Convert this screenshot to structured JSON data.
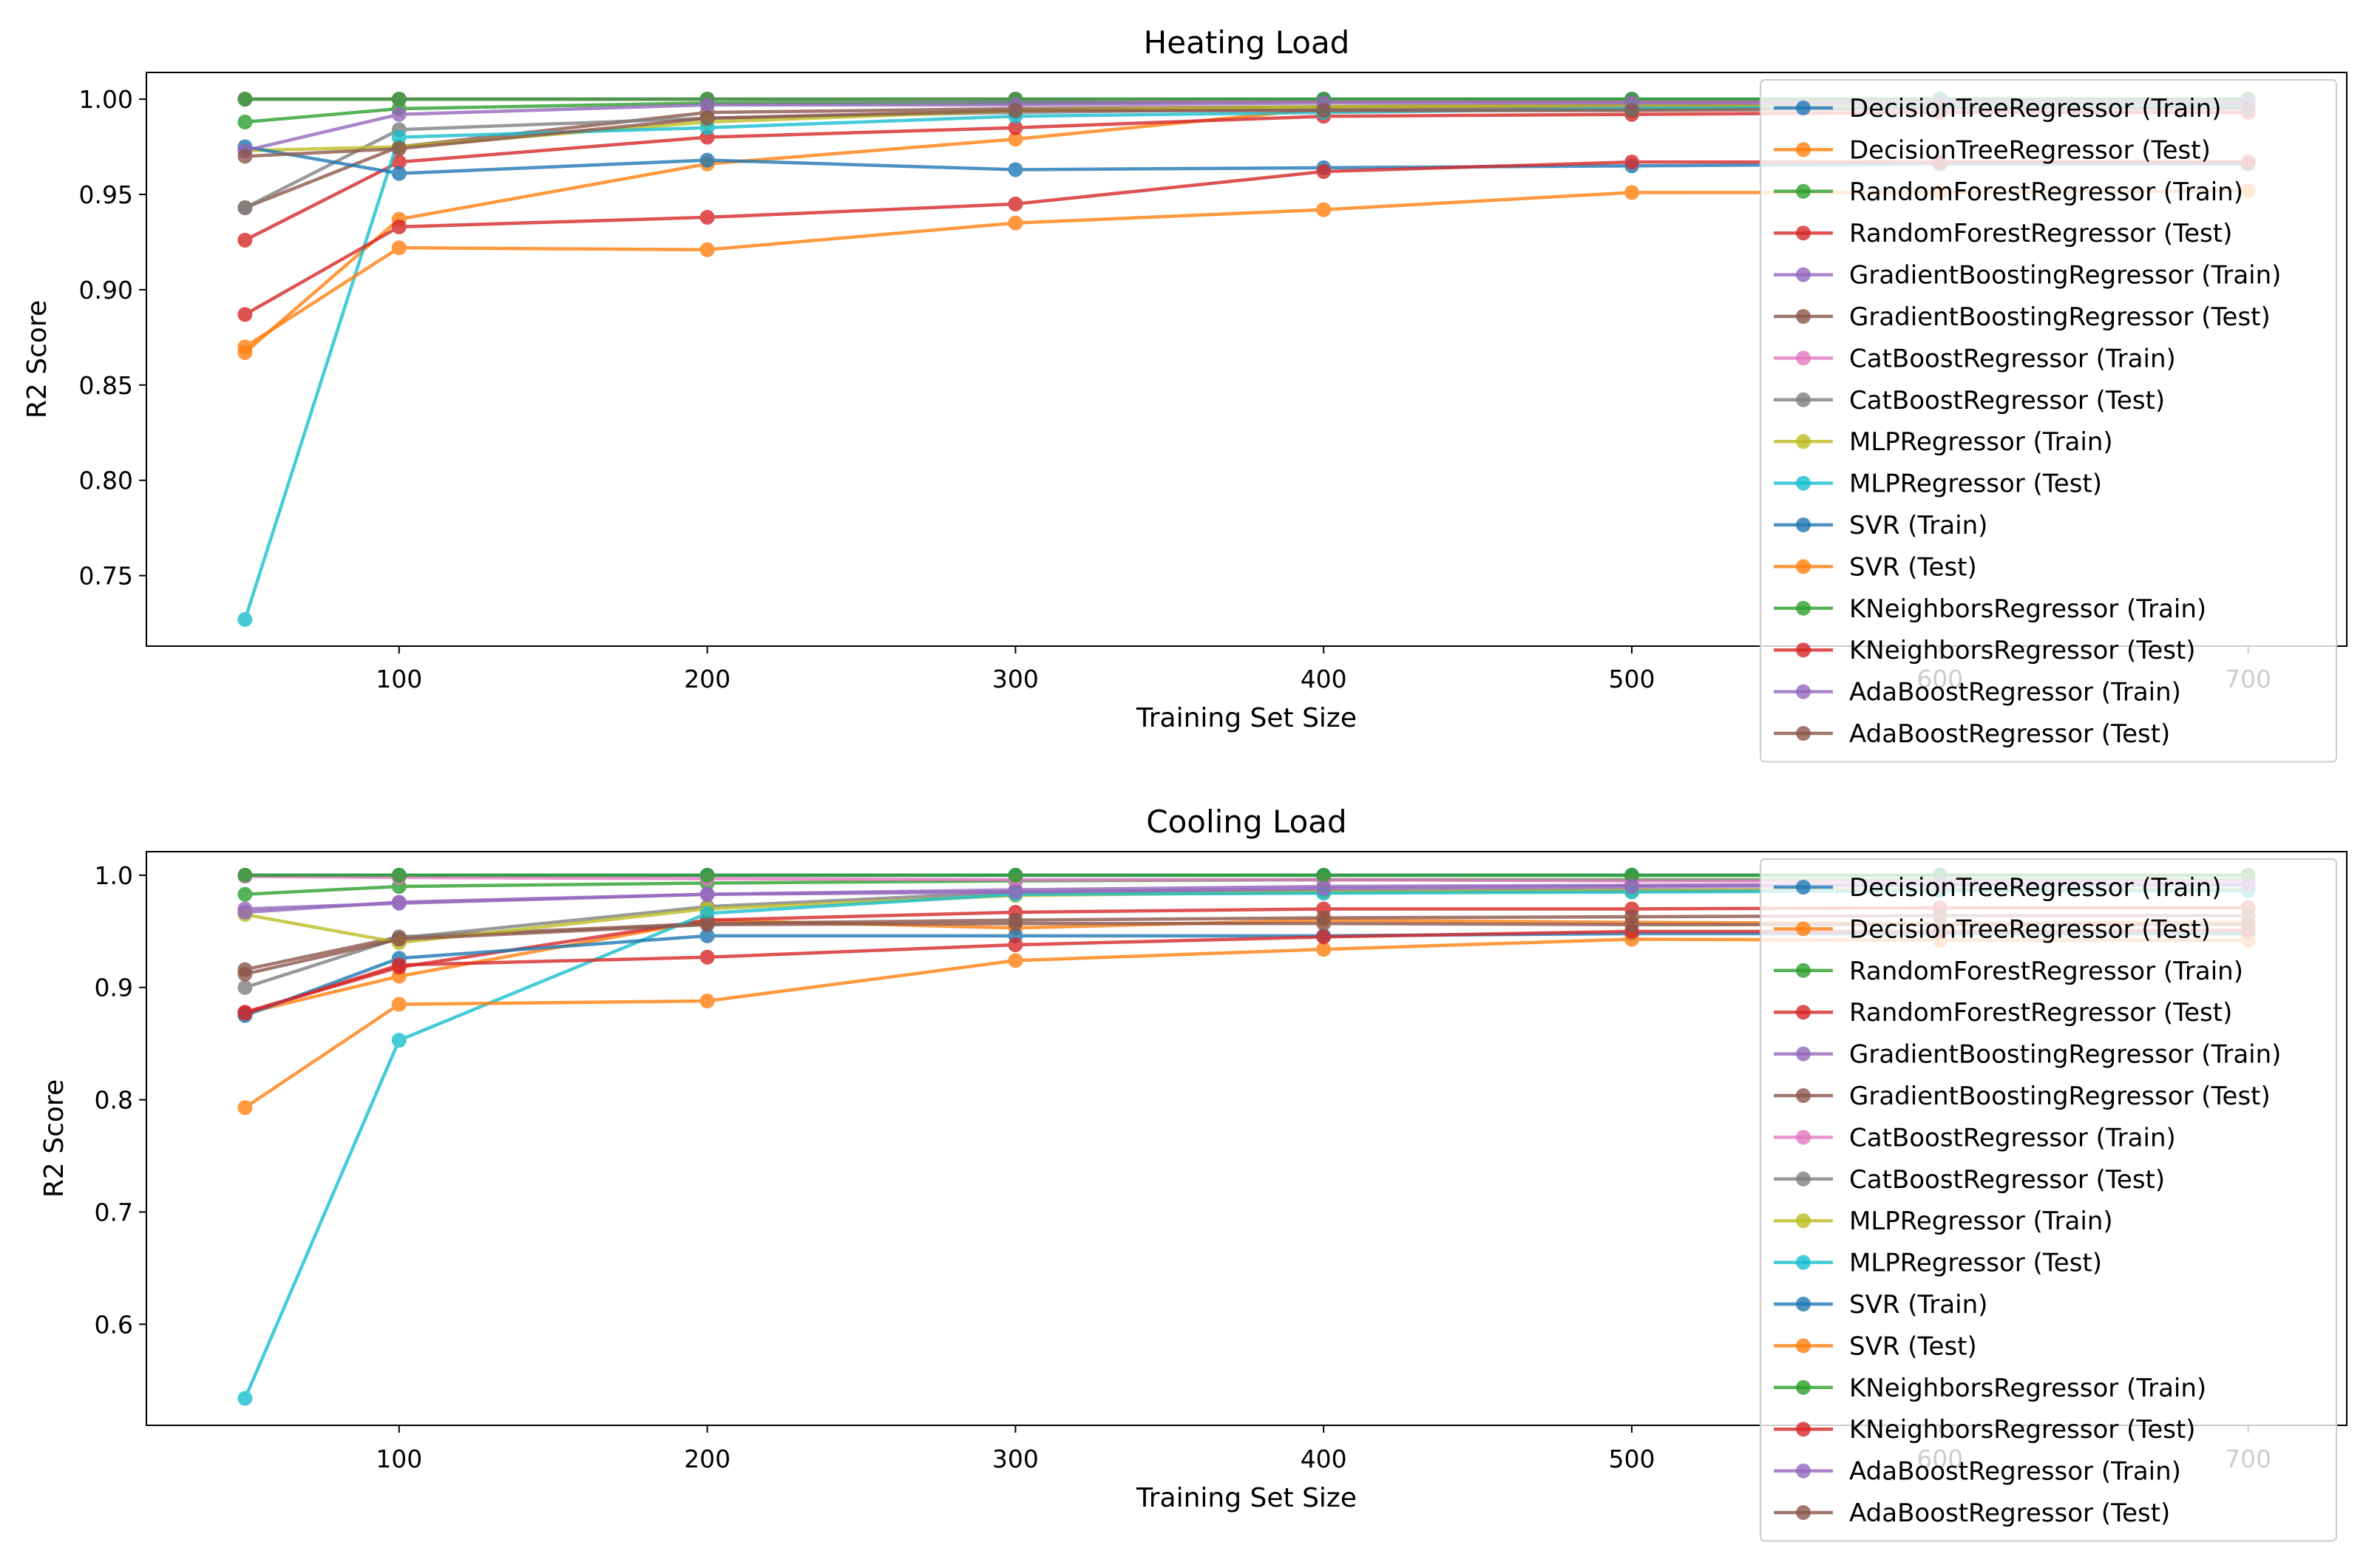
{
  "figure_title": "",
  "chart_data": [
    {
      "type": "line",
      "title": "Heating Load",
      "xlabel": "Training Set Size",
      "ylabel": "R2 Score",
      "xlim": [
        18,
        732
      ],
      "ylim": [
        0.713,
        1.014
      ],
      "xticks": [
        100,
        200,
        300,
        400,
        500,
        600,
        700
      ],
      "xtick_labels": [
        "100",
        "200",
        "300",
        "400",
        "500",
        "600",
        "700"
      ],
      "yticks": [
        0.75,
        0.8,
        0.85,
        0.9,
        0.95,
        1.0
      ],
      "ytick_labels": [
        "0.75",
        "0.80",
        "0.85",
        "0.90",
        "0.95",
        "1.00"
      ],
      "legend_position": "top-right",
      "x": [
        50,
        100,
        200,
        300,
        400,
        500,
        600,
        700
      ],
      "series": [
        {
          "name": "DecisionTreeRegressor (Train)",
          "color": "#1f77b4",
          "values": [
            1.0,
            1.0,
            1.0,
            1.0,
            1.0,
            1.0,
            1.0,
            1.0
          ]
        },
        {
          "name": "DecisionTreeRegressor (Test)",
          "color": "#ff7f0e",
          "values": [
            0.867,
            0.937,
            0.966,
            0.979,
            0.995,
            0.995,
            0.996,
            0.996
          ]
        },
        {
          "name": "RandomForestRegressor (Train)",
          "color": "#2ca02c",
          "values": [
            0.988,
            0.995,
            0.998,
            0.998,
            0.999,
            0.999,
            0.999,
            0.999
          ]
        },
        {
          "name": "RandomForestRegressor (Test)",
          "color": "#d62728",
          "values": [
            0.926,
            0.967,
            0.98,
            0.985,
            0.991,
            0.992,
            0.993,
            0.993
          ]
        },
        {
          "name": "GradientBoostingRegressor (Train)",
          "color": "#9467bd",
          "values": [
            1.0,
            1.0,
            1.0,
            0.999,
            0.999,
            0.999,
            0.999,
            0.999
          ]
        },
        {
          "name": "GradientBoostingRegressor (Test)",
          "color": "#8c564b",
          "values": [
            0.943,
            0.975,
            0.993,
            0.995,
            0.996,
            0.997,
            0.997,
            0.997
          ]
        },
        {
          "name": "CatBoostRegressor (Train)",
          "color": "#e377c2",
          "values": [
            1.0,
            1.0,
            1.0,
            1.0,
            0.999,
            0.999,
            0.999,
            0.999
          ]
        },
        {
          "name": "CatBoostRegressor (Test)",
          "color": "#7f7f7f",
          "values": [
            0.943,
            0.984,
            0.99,
            0.993,
            0.995,
            0.996,
            0.997,
            0.997
          ]
        },
        {
          "name": "MLPRegressor (Train)",
          "color": "#bcbd22",
          "values": [
            0.973,
            0.975,
            0.988,
            0.994,
            0.996,
            0.997,
            0.997,
            0.998
          ]
        },
        {
          "name": "MLPRegressor (Test)",
          "color": "#17becf",
          "values": [
            0.727,
            0.98,
            0.985,
            0.991,
            0.993,
            0.995,
            0.996,
            0.996
          ]
        },
        {
          "name": "SVR (Train)",
          "color": "#1f77b4",
          "values": [
            0.975,
            0.961,
            0.968,
            0.963,
            0.964,
            0.965,
            0.966,
            0.966
          ]
        },
        {
          "name": "SVR (Test)",
          "color": "#ff7f0e",
          "values": [
            0.87,
            0.922,
            0.921,
            0.935,
            0.942,
            0.951,
            0.951,
            0.952
          ]
        },
        {
          "name": "KNeighborsRegressor (Train)",
          "color": "#2ca02c",
          "values": [
            1.0,
            1.0,
            1.0,
            1.0,
            1.0,
            1.0,
            1.0,
            1.0
          ]
        },
        {
          "name": "KNeighborsRegressor (Test)",
          "color": "#d62728",
          "values": [
            0.887,
            0.933,
            0.938,
            0.945,
            0.962,
            0.967,
            0.967,
            0.967
          ]
        },
        {
          "name": "AdaBoostRegressor (Train)",
          "color": "#9467bd",
          "values": [
            0.973,
            0.992,
            0.997,
            0.997,
            0.998,
            0.998,
            0.998,
            0.998
          ]
        },
        {
          "name": "AdaBoostRegressor (Test)",
          "color": "#8c564b",
          "values": [
            0.97,
            0.974,
            0.99,
            0.994,
            0.994,
            0.994,
            0.995,
            0.995
          ]
        }
      ]
    },
    {
      "type": "line",
      "title": "Cooling Load",
      "xlabel": "Training Set Size",
      "ylabel": "R2 Score",
      "xlim": [
        18,
        732
      ],
      "ylim": [
        0.51,
        1.021
      ],
      "xticks": [
        100,
        200,
        300,
        400,
        500,
        600,
        700
      ],
      "xtick_labels": [
        "100",
        "200",
        "300",
        "400",
        "500",
        "600",
        "700"
      ],
      "yticks": [
        0.6,
        0.7,
        0.8,
        0.9,
        1.0
      ],
      "ytick_labels": [
        "0.6",
        "0.7",
        "0.8",
        "0.9",
        "1.0"
      ],
      "legend_position": "top-right",
      "x": [
        50,
        100,
        200,
        300,
        400,
        500,
        600,
        700
      ],
      "series": [
        {
          "name": "DecisionTreeRegressor (Train)",
          "color": "#1f77b4",
          "values": [
            1.0,
            1.0,
            1.0,
            1.0,
            1.0,
            1.0,
            1.0,
            1.0
          ]
        },
        {
          "name": "DecisionTreeRegressor (Test)",
          "color": "#ff7f0e",
          "values": [
            0.877,
            0.91,
            0.96,
            0.953,
            0.96,
            0.958,
            0.957,
            0.958
          ]
        },
        {
          "name": "RandomForestRegressor (Train)",
          "color": "#2ca02c",
          "values": [
            0.983,
            0.99,
            0.993,
            0.995,
            0.996,
            0.996,
            0.996,
            0.996
          ]
        },
        {
          "name": "RandomForestRegressor (Test)",
          "color": "#d62728",
          "values": [
            0.878,
            0.918,
            0.96,
            0.967,
            0.97,
            0.97,
            0.971,
            0.971
          ]
        },
        {
          "name": "GradientBoostingRegressor (Train)",
          "color": "#9467bd",
          "values": [
            0.97,
            0.975,
            0.983,
            0.987,
            0.99,
            0.991,
            0.992,
            0.992
          ]
        },
        {
          "name": "GradientBoostingRegressor (Test)",
          "color": "#8c564b",
          "values": [
            0.916,
            0.945,
            0.957,
            0.96,
            0.962,
            0.963,
            0.964,
            0.964
          ]
        },
        {
          "name": "CatBoostRegressor (Train)",
          "color": "#e377c2",
          "values": [
            0.999,
            0.998,
            0.997,
            0.996,
            0.996,
            0.995,
            0.995,
            0.995
          ]
        },
        {
          "name": "CatBoostRegressor (Test)",
          "color": "#7f7f7f",
          "values": [
            0.9,
            0.944,
            0.972,
            0.985,
            0.986,
            0.987,
            0.987,
            0.987
          ]
        },
        {
          "name": "MLPRegressor (Train)",
          "color": "#bcbd22",
          "values": [
            0.965,
            0.94,
            0.97,
            0.982,
            0.985,
            0.986,
            0.987,
            0.987
          ]
        },
        {
          "name": "MLPRegressor (Test)",
          "color": "#17becf",
          "values": [
            0.534,
            0.853,
            0.966,
            0.983,
            0.984,
            0.985,
            0.986,
            0.986
          ]
        },
        {
          "name": "SVR (Train)",
          "color": "#1f77b4",
          "values": [
            0.875,
            0.926,
            0.946,
            0.946,
            0.946,
            0.948,
            0.948,
            0.948
          ]
        },
        {
          "name": "SVR (Test)",
          "color": "#ff7f0e",
          "values": [
            0.793,
            0.885,
            0.888,
            0.924,
            0.934,
            0.943,
            0.942,
            0.942
          ]
        },
        {
          "name": "KNeighborsRegressor (Train)",
          "color": "#2ca02c",
          "values": [
            1.0,
            1.0,
            1.0,
            1.0,
            1.0,
            1.0,
            1.0,
            1.0
          ]
        },
        {
          "name": "KNeighborsRegressor (Test)",
          "color": "#d62728",
          "values": [
            0.877,
            0.92,
            0.927,
            0.938,
            0.945,
            0.95,
            0.95,
            0.951
          ]
        },
        {
          "name": "AdaBoostRegressor (Train)",
          "color": "#9467bd",
          "values": [
            0.967,
            0.976,
            0.983,
            0.985,
            0.988,
            0.99,
            0.991,
            0.991
          ]
        },
        {
          "name": "AdaBoostRegressor (Test)",
          "color": "#8c564b",
          "values": [
            0.912,
            0.943,
            0.956,
            0.957,
            0.957,
            0.956,
            0.956,
            0.956
          ]
        }
      ]
    }
  ]
}
